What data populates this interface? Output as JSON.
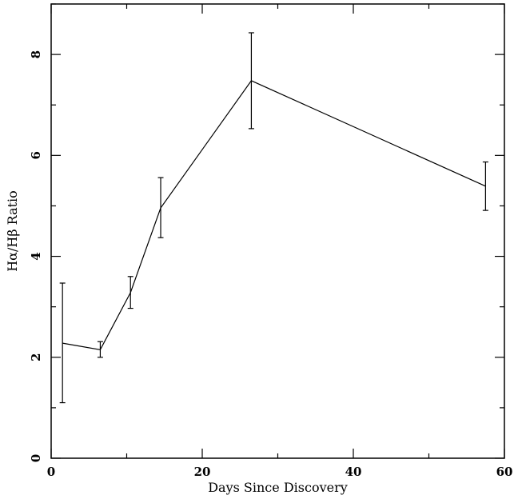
{
  "chart_data": {
    "type": "line",
    "xlabel": "Days Since Discovery",
    "ylabel": "Hα/Hβ Ratio",
    "xlim": [
      0,
      60
    ],
    "ylim": [
      0,
      9
    ],
    "xticks": [
      0,
      20,
      40,
      60
    ],
    "xtick_labels": [
      "0",
      "20",
      "40",
      "60"
    ],
    "yticks": [
      0,
      2,
      4,
      6,
      8
    ],
    "ytick_labels": [
      "0",
      "2",
      "4",
      "6",
      "8"
    ],
    "grid": false,
    "series": [
      {
        "x": [
          1.5,
          6.5,
          10.5,
          14.5,
          26.5,
          57.5
        ],
        "y": [
          2.28,
          2.15,
          3.28,
          4.96,
          7.48,
          5.39
        ],
        "y_err_low": [
          1.1,
          2.0,
          2.97,
          4.37,
          6.53,
          4.91
        ],
        "y_err_high": [
          3.47,
          2.31,
          3.6,
          5.56,
          8.43,
          5.87
        ]
      }
    ],
    "colors": {
      "line": "#000000",
      "axes": "#000000",
      "background": "#ffffff"
    }
  }
}
